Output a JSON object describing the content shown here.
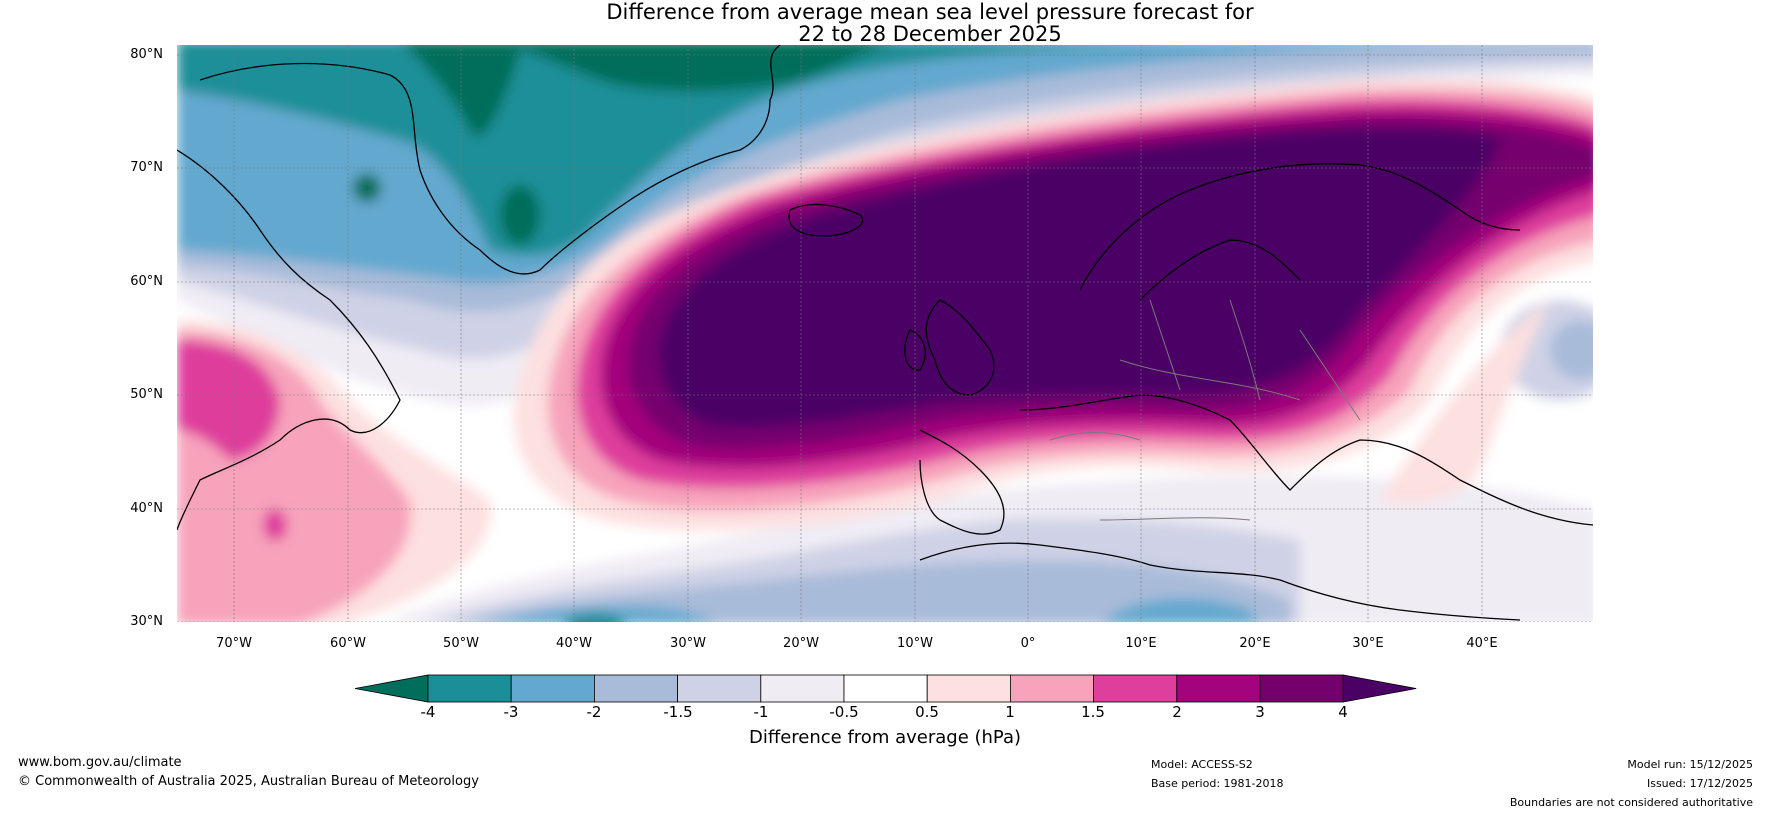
{
  "title": {
    "line1": "Difference from average mean sea level pressure forecast for",
    "line2": "22 to 28 December 2025"
  },
  "map": {
    "latitude_labels": [
      "80°N",
      "70°N",
      "60°N",
      "50°N",
      "40°N",
      "30°N"
    ],
    "longitude_labels": [
      "70°W",
      "60°W",
      "50°W",
      "40°W",
      "30°W",
      "20°W",
      "10°W",
      "0°",
      "10°E",
      "20°E",
      "30°E",
      "40°E"
    ]
  },
  "colorbar": {
    "ticks": [
      "-4",
      "-3",
      "-2",
      "-1.5",
      "-1",
      "-0.5",
      "0.5",
      "1",
      "1.5",
      "2",
      "3",
      "4"
    ],
    "colors": [
      "#006e5a",
      "#1b8f98",
      "#63a8cf",
      "#a8bbd9",
      "#cfd2e6",
      "#efecf4",
      "#ffffff",
      "#fde0e0",
      "#f7a3bb",
      "#de3e9c",
      "#a3037c",
      "#74006e",
      "#4b0066"
    ],
    "title": "Difference from average (hPa)"
  },
  "footer": {
    "website": "www.bom.gov.au/climate",
    "copyright": "© Commonwealth of Australia 2025, Australian Bureau of Meteorology",
    "model": "Model: ACCESS-S2",
    "base_period": "Base period: 1981-2018",
    "model_run": "Model run: 15/12/2025",
    "issued": "Issued: 17/12/2025",
    "disclaimer": "Boundaries are not considered authoritative"
  }
}
